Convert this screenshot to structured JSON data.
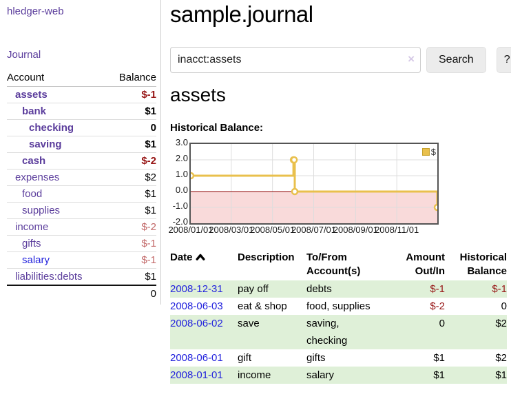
{
  "sidebar": {
    "app_title": "hledger-web",
    "journal_label": "Journal",
    "accounts": {
      "headers": {
        "account": "Account",
        "balance": "Balance"
      },
      "rows": [
        {
          "name": "assets",
          "balance": "$-1",
          "level": 1,
          "bold": true,
          "neg": "strong"
        },
        {
          "name": "bank",
          "balance": "$1",
          "level": 2,
          "bold": true
        },
        {
          "name": "checking",
          "balance": "0",
          "level": 3,
          "bold": true
        },
        {
          "name": "saving",
          "balance": "$1",
          "level": 3,
          "bold": true
        },
        {
          "name": "cash",
          "balance": "$-2",
          "level": 2,
          "bold": true,
          "neg": "strong"
        },
        {
          "name": "expenses",
          "balance": "$2",
          "level": 1
        },
        {
          "name": "food",
          "balance": "$1",
          "level": 2
        },
        {
          "name": "supplies",
          "balance": "$1",
          "level": 2
        },
        {
          "name": "income",
          "balance": "$-2",
          "level": 1,
          "neg": "soft"
        },
        {
          "name": "gifts",
          "balance": "$-1",
          "level": 2,
          "neg": "soft"
        },
        {
          "name": "salary",
          "balance": "$-1",
          "level": 2,
          "neg": "soft",
          "link_color": "blue"
        },
        {
          "name": "liabilities:debts",
          "balance": "$1",
          "level": 1
        }
      ],
      "total": "0"
    }
  },
  "header": {
    "title": "sample.journal"
  },
  "search": {
    "value": "inacct:assets",
    "clear_icon": "×",
    "button_label": "Search",
    "help_label": "?"
  },
  "account_page": {
    "title": "assets",
    "chart_label": "Historical Balance:"
  },
  "chart_data": {
    "type": "line",
    "step": true,
    "title": "Historical Balance",
    "series": [
      {
        "name": "$",
        "points": [
          [
            "2008-01-01",
            1
          ],
          [
            "2008-06-01",
            2
          ],
          [
            "2008-06-02",
            2
          ],
          [
            "2008-06-03",
            0
          ],
          [
            "2008-12-31",
            -1
          ]
        ]
      }
    ],
    "x_range": [
      "2008-01-01",
      "2008-12-31"
    ],
    "x_ticks": [
      {
        "date": "2008-01-01",
        "label": "2008/01/01"
      },
      {
        "date": "2008-03-01",
        "label": "2008/03/01"
      },
      {
        "date": "2008-05-01",
        "label": "2008/05/01"
      },
      {
        "date": "2008-07-01",
        "label": "2008/07/01"
      },
      {
        "date": "2008-09-01",
        "label": "2008/09/01"
      },
      {
        "date": "2008-11-01",
        "label": "2008/11/01"
      }
    ],
    "y_ticks": [
      "3.0",
      "2.0",
      "1.0",
      "0.0",
      "-1.0",
      "-2.0"
    ],
    "ylim": [
      -2,
      3
    ],
    "grid": true,
    "legend_position": "top-right",
    "negative_region_shaded": true
  },
  "register": {
    "headers": [
      {
        "label": "Date",
        "sort": "asc"
      },
      {
        "label": "Description"
      },
      {
        "label": "To/From Account(s)"
      },
      {
        "label": "Amount Out/In"
      },
      {
        "label": "Historical Balance"
      }
    ],
    "rows": [
      {
        "date": "2008-12-31",
        "description": "pay off",
        "accounts": "debts",
        "amount": "$-1",
        "balance": "$-1",
        "amount_neg": true,
        "balance_neg": true
      },
      {
        "date": "2008-06-03",
        "description": "eat & shop",
        "accounts": "food, supplies",
        "amount": "$-2",
        "balance": "0",
        "amount_neg": true
      },
      {
        "date": "2008-06-02",
        "description": "save",
        "accounts": "saving, checking",
        "amount": "0",
        "balance": "$2"
      },
      {
        "date": "2008-06-01",
        "description": "gift",
        "accounts": "gifts",
        "amount": "$1",
        "balance": "$2"
      },
      {
        "date": "2008-01-01",
        "description": "income",
        "accounts": "salary",
        "amount": "$1",
        "balance": "$1"
      }
    ]
  },
  "colors": {
    "link_purple": "#5b3d9c",
    "link_blue": "#2323dd",
    "neg_strong": "#971616",
    "neg_soft": "#c26868",
    "row_green": "#dff0d8",
    "series_yellow": "#e9c04d",
    "series_yellow_border": "#c7a22e",
    "negative_region": "#f9dada",
    "zero_line": "#8b0000",
    "chart_border": "#545454",
    "grid_line": "#dddddd"
  }
}
